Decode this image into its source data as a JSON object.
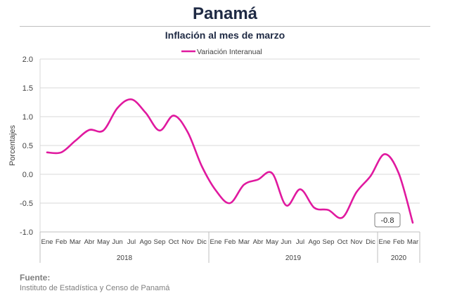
{
  "header": {
    "title": "Panamá",
    "subtitle": "Inflación al mes de marzo"
  },
  "chart_data": {
    "type": "line",
    "ylabel": "Porcentajes",
    "ylim": [
      -1.0,
      2.0
    ],
    "yticks": [
      "2.0",
      "1.5",
      "1.0",
      "0.5",
      "0.0",
      "-0.5",
      "-1.0"
    ],
    "ytick_values": [
      2.0,
      1.5,
      1.0,
      0.5,
      0.0,
      -0.5,
      -1.0
    ],
    "grid": true,
    "legend_position": "top",
    "categories": [
      "Ene",
      "Feb",
      "Mar",
      "Abr",
      "May",
      "Jun",
      "Jul",
      "Ago",
      "Sep",
      "Oct",
      "Nov",
      "Dic",
      "Ene",
      "Feb",
      "Mar",
      "Abr",
      "May",
      "Jun",
      "Jul",
      "Ago",
      "Sep",
      "Oct",
      "Nov",
      "Dic",
      "Ene",
      "Feb",
      "Mar"
    ],
    "year_groups": [
      {
        "label": "2018",
        "count": 12
      },
      {
        "label": "2019",
        "count": 12
      },
      {
        "label": "2020",
        "count": 3
      }
    ],
    "series": [
      {
        "name": "Variación Interanual",
        "color": "#e0199f",
        "values": [
          0.38,
          0.38,
          0.58,
          0.77,
          0.76,
          1.15,
          1.3,
          1.07,
          0.76,
          1.02,
          0.73,
          0.14,
          -0.28,
          -0.5,
          -0.18,
          -0.09,
          0.02,
          -0.54,
          -0.26,
          -0.58,
          -0.62,
          -0.75,
          -0.31,
          -0.03,
          0.35,
          0.02,
          -0.84
        ]
      }
    ],
    "annotation": {
      "text": "-0.8",
      "index": 26
    }
  },
  "source": {
    "heading": "Fuente:",
    "text": "Instituto de Estadística y Censo de Panamá"
  }
}
